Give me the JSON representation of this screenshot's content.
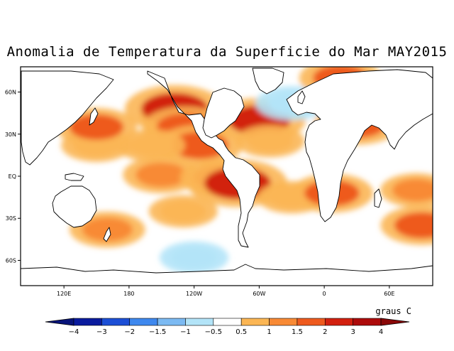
{
  "title": "Anomalia de Temperatura da Superficie do Mar MAY2015",
  "lat_ticks": [
    {
      "value": 60,
      "label": "60N"
    },
    {
      "value": 30,
      "label": "30N"
    },
    {
      "value": 0,
      "label": "EQ"
    },
    {
      "value": -30,
      "label": "30S"
    },
    {
      "value": -60,
      "label": "60S"
    }
  ],
  "lon_ticks": [
    {
      "value": 120,
      "label": "120E"
    },
    {
      "value": 180,
      "label": "180"
    },
    {
      "value": 240,
      "label": "120W"
    },
    {
      "value": 300,
      "label": "60W"
    },
    {
      "value": 360,
      "label": "0"
    },
    {
      "value": 420,
      "label": "60E"
    }
  ],
  "extent": {
    "lon_min": 80,
    "lon_max": 460,
    "lat_min": -78,
    "lat_max": 78
  },
  "units": "graus C",
  "colorbar": {
    "labels": [
      "-4",
      "-3",
      "-2",
      "-1.5",
      "-1",
      "-0.5",
      "0.5",
      "1",
      "1.5",
      "2",
      "3",
      "4"
    ],
    "colors": [
      "#0a1b9e",
      "#1c4fd6",
      "#3e88ee",
      "#7cbaf2",
      "#b3e4f8",
      "#ffffff",
      "#fbb654",
      "#f88a35",
      "#ee5a1e",
      "#d2200f",
      "#ad0b0b"
    ],
    "low_color": "#08147a",
    "high_color": "#8a0808"
  },
  "anomaly_patches": [
    {
      "region": "NE Pacific blob",
      "lon": 225,
      "lat": 43,
      "level": 1.2
    },
    {
      "region": "NE Pacific core",
      "lon": 222,
      "lat": 48,
      "level": 2.6
    },
    {
      "region": "NE Pacific south",
      "lon": 232,
      "lat": 35,
      "level": 1.8
    },
    {
      "region": "Baja California coast",
      "lon": 245,
      "lat": 22,
      "level": 1.8
    },
    {
      "region": "Central Pacific belt",
      "lon": 200,
      "lat": 22,
      "level": 0.8
    },
    {
      "region": "Equatorial Pacific",
      "lon": 210,
      "lat": 1,
      "level": 1.3
    },
    {
      "region": "Eastern Equatorial Pacific",
      "lon": 265,
      "lat": -1,
      "level": 1.6
    },
    {
      "region": "Peru coast",
      "lon": 280,
      "lat": -5,
      "level": 2.6
    },
    {
      "region": "South Pacific",
      "lon": 230,
      "lat": -25,
      "level": 0.8
    },
    {
      "region": "Western North Pacific",
      "lon": 150,
      "lat": 22,
      "level": 0.9
    },
    {
      "region": "Kuroshio",
      "lon": 150,
      "lat": 35,
      "level": 1.5
    },
    {
      "region": "Gulf Stream",
      "lon": 300,
      "lat": 40,
      "level": 2.2
    },
    {
      "region": "North Atlantic warm",
      "lon": 310,
      "lat": 25,
      "level": 0.8
    },
    {
      "region": "North Atlantic cold",
      "lon": 330,
      "lat": 52,
      "level": -1.0
    },
    {
      "region": "Norwegian Sea",
      "lon": 375,
      "lat": 70,
      "level": 1.6
    },
    {
      "region": "Mediterranean",
      "lon": 390,
      "lat": 37,
      "level": 1.8
    },
    {
      "region": "South Atlantic",
      "lon": 330,
      "lat": -15,
      "level": 0.8
    },
    {
      "region": "Angola coast",
      "lon": 367,
      "lat": -12,
      "level": 1.6
    },
    {
      "region": "Indian Ocean",
      "lon": 445,
      "lat": -10,
      "level": 1.0
    },
    {
      "region": "South Indian",
      "lon": 450,
      "lat": -35,
      "level": 1.6
    },
    {
      "region": "Southern Ocean cold",
      "lon": 240,
      "lat": -58,
      "level": -0.8
    },
    {
      "region": "Tasman Sea",
      "lon": 160,
      "lat": -38,
      "level": 1.2
    }
  ]
}
